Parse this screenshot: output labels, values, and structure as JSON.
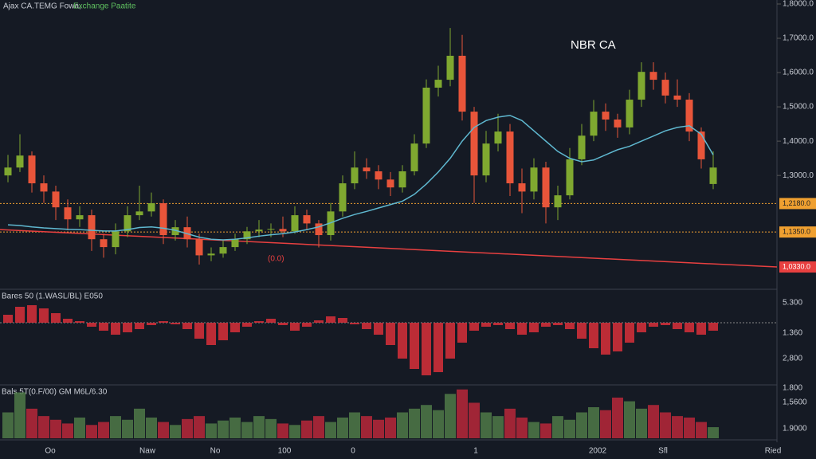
{
  "header": {
    "title": "Ajax CA.TEMG Fowa,",
    "subtitle": "Exchange Paatite"
  },
  "chart_data": [
    {
      "type": "candlestick",
      "annotation": "NBR CA",
      "note": "(0.0)",
      "open": [
        13000,
        13230,
        13580,
        12770,
        12530,
        12070,
        11720,
        11840,
        11140,
        10910,
        11370,
        11840,
        11950,
        12190,
        11260,
        11490,
        11140,
        10670,
        10720,
        10910,
        11140,
        11370,
        11420,
        11440,
        11370,
        11840,
        11600,
        11260,
        11950,
        12770,
        13230,
        13120,
        12880,
        12650,
        13120,
        13930,
        15560,
        15790,
        16490,
        14860,
        13000,
        13930,
        14280,
        12770,
        12530,
        13230,
        12070,
        12420,
        13470,
        14160,
        14860,
        14630,
        14400,
        15210,
        16020,
        15790,
        15330,
        15210,
        14280,
        12750
      ],
      "high": [
        13600,
        14200,
        13700,
        13000,
        12700,
        12300,
        12100,
        12000,
        11300,
        11600,
        12100,
        12700,
        12500,
        12300,
        11700,
        11800,
        11300,
        10900,
        11100,
        11300,
        11500,
        11700,
        11600,
        11800,
        12100,
        12000,
        11700,
        12200,
        13000,
        13700,
        13500,
        13300,
        13100,
        13300,
        14200,
        15800,
        16200,
        17300,
        17100,
        15000,
        14300,
        14800,
        14500,
        13200,
        13500,
        13400,
        12700,
        13800,
        14500,
        15200,
        15100,
        14800,
        15500,
        16300,
        16300,
        16000,
        15800,
        15400,
        14400,
        13700
      ],
      "low": [
        12800,
        13100,
        12500,
        12200,
        11700,
        11400,
        11500,
        10800,
        10600,
        10700,
        11200,
        11700,
        11800,
        11000,
        11100,
        10900,
        10400,
        10500,
        10600,
        10800,
        11000,
        11200,
        11200,
        11200,
        11300,
        11400,
        10900,
        11100,
        11800,
        12600,
        12900,
        12600,
        12400,
        12500,
        13000,
        13800,
        15300,
        15600,
        14600,
        12200,
        12800,
        13700,
        12400,
        11900,
        12300,
        11600,
        11700,
        12300,
        13300,
        14000,
        14300,
        14100,
        14200,
        15000,
        15500,
        15100,
        15000,
        14000,
        13200,
        12600
      ],
      "close": [
        13230,
        13580,
        12770,
        12530,
        12070,
        11720,
        11840,
        11140,
        10910,
        11370,
        11840,
        11950,
        12190,
        11260,
        11490,
        11140,
        10670,
        10720,
        10910,
        11140,
        11370,
        11420,
        11440,
        11370,
        11840,
        11600,
        11260,
        11950,
        12770,
        13230,
        13120,
        12880,
        12650,
        13120,
        13930,
        15560,
        15790,
        16490,
        14860,
        13000,
        13930,
        14280,
        12770,
        12530,
        13230,
        12070,
        12420,
        13470,
        14160,
        14860,
        14630,
        14400,
        15210,
        16020,
        15790,
        15330,
        15210,
        14280,
        13470,
        13230
      ],
      "up_color": "#7fa830",
      "down_color": "#e8553a",
      "ma": {
        "color": "#5fb8d0",
        "values": [
          11560,
          11540,
          11500,
          11470,
          11450,
          11430,
          11420,
          11400,
          11380,
          11380,
          11420,
          11480,
          11500,
          11460,
          11400,
          11300,
          11200,
          11140,
          11120,
          11140,
          11180,
          11230,
          11270,
          11300,
          11350,
          11420,
          11500,
          11620,
          11750,
          11860,
          11950,
          12050,
          12150,
          12250,
          12450,
          12750,
          13100,
          13500,
          14000,
          14400,
          14600,
          14700,
          14750,
          14600,
          14300,
          14000,
          13700,
          13500,
          13400,
          13450,
          13600,
          13750,
          13850,
          14000,
          14150,
          14300,
          14400,
          14450,
          14200,
          13600
        ]
      },
      "levels": [
        {
          "value": 12180,
          "label": "1,2180.0",
          "color": "#f0a030"
        },
        {
          "value": 11350,
          "label": "1,1350.0",
          "color": "#f0a030"
        }
      ],
      "trend_line": {
        "values": [
          11420,
          10330
        ],
        "label": "1,0330.0",
        "color": "#e84040"
      },
      "ylim": [
        9750,
        18000
      ],
      "yticks": [
        {
          "value": 18000,
          "label": "1,8000.0"
        },
        {
          "value": 17000,
          "label": "1,7000.0"
        },
        {
          "value": 16000,
          "label": "1,6000.0"
        },
        {
          "value": 15000,
          "label": "1,5000.0"
        },
        {
          "value": 14000,
          "label": "1,4000.0"
        },
        {
          "value": 13000,
          "label": "1,3000.0"
        }
      ]
    },
    {
      "type": "histogram",
      "title": "Bares 50 (1.WASL/BL) E050",
      "color": "#d8303a",
      "axis_texts": [
        "5.300",
        "1.360",
        "2,800"
      ],
      "values": [
        10,
        20,
        22,
        18,
        12,
        5,
        2,
        -5,
        -10,
        -15,
        -12,
        -8,
        -3,
        2,
        -2,
        -8,
        -20,
        -28,
        -22,
        -12,
        -5,
        2,
        5,
        -3,
        -10,
        -5,
        3,
        8,
        6,
        -2,
        -8,
        -15,
        -28,
        -45,
        -58,
        -66,
        -62,
        -45,
        -25,
        -10,
        -5,
        -3,
        -8,
        -15,
        -12,
        -5,
        -3,
        -8,
        -20,
        -32,
        -40,
        -36,
        -25,
        -12,
        -5,
        -3,
        -8,
        -12,
        -15,
        -10
      ],
      "ylim": [
        -75,
        40
      ]
    },
    {
      "type": "volume",
      "title": "Bals 5T(0.F/00) GM M6L/6.30",
      "axis_texts": [
        "1.800",
        "1,5600",
        "1.9000"
      ],
      "values": [
        35,
        62,
        40,
        30,
        25,
        20,
        28,
        18,
        22,
        30,
        25,
        40,
        28,
        22,
        18,
        26,
        30,
        20,
        24,
        28,
        22,
        30,
        26,
        20,
        18,
        24,
        30,
        22,
        28,
        35,
        30,
        25,
        28,
        35,
        40,
        45,
        38,
        60,
        66,
        48,
        35,
        30,
        40,
        28,
        22,
        20,
        30,
        25,
        35,
        42,
        38,
        55,
        50,
        40,
        45,
        35,
        30,
        28,
        22,
        15
      ],
      "ylim": [
        0,
        70
      ]
    }
  ],
  "x_axis": [
    "Oo",
    "Naw",
    "No",
    "100",
    "0",
    "1",
    "2002",
    "Sfl",
    "Ried"
  ]
}
